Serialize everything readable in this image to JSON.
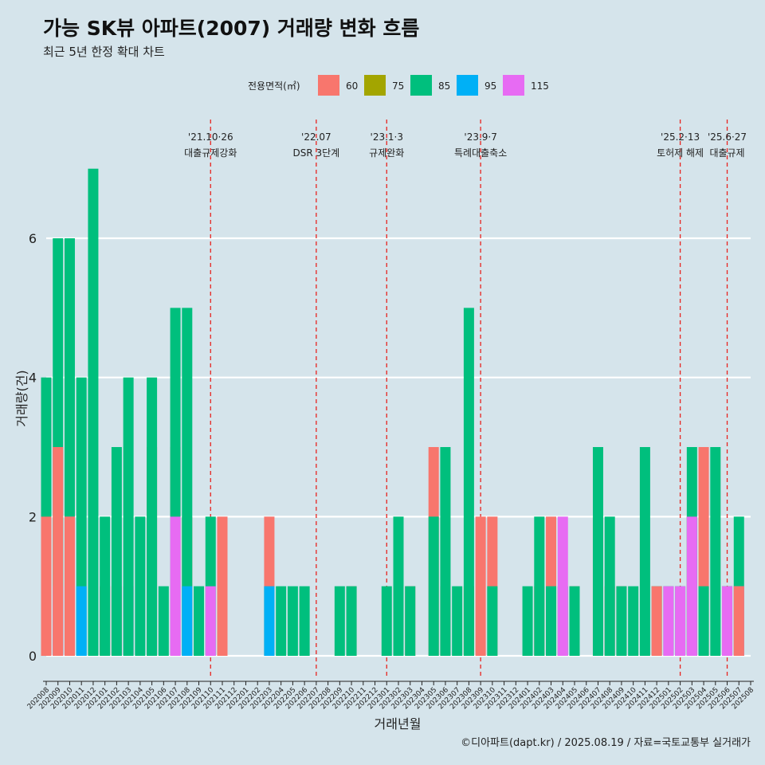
{
  "chart_data": {
    "type": "bar",
    "title": "가능 SK뷰 아파트(2007) 거래량 변화 흐름",
    "subtitle": "최근 5년 한정 확대 차트",
    "xlabel": "거래년월",
    "ylabel": "거래량(건)",
    "ylim": [
      -0.3,
      7.0
    ],
    "yticks": [
      0,
      2,
      4,
      6
    ],
    "grid": true,
    "legend": {
      "title": "전용면적(㎡)",
      "position": "top",
      "entries": [
        {
          "name": "60",
          "color": "#f8766d"
        },
        {
          "name": "75",
          "color": "#a3a500"
        },
        {
          "name": "85",
          "color": "#00bf7d"
        },
        {
          "name": "95",
          "color": "#00b0f6"
        },
        {
          "name": "115",
          "color": "#e76bf3"
        }
      ]
    },
    "categories": [
      "202008",
      "202009",
      "202010",
      "202011",
      "202012",
      "202101",
      "202102",
      "202103",
      "202104",
      "202105",
      "202106",
      "202107",
      "202108",
      "202109",
      "202110",
      "202111",
      "202112",
      "202201",
      "202202",
      "202203",
      "202204",
      "202205",
      "202206",
      "202207",
      "202208",
      "202209",
      "202210",
      "202211",
      "202212",
      "202301",
      "202302",
      "202303",
      "202304",
      "202305",
      "202306",
      "202307",
      "202308",
      "202309",
      "202310",
      "202311",
      "202312",
      "202401",
      "202402",
      "202403",
      "202404",
      "202405",
      "202406",
      "202407",
      "202408",
      "202409",
      "202410",
      "202411",
      "202412",
      "202501",
      "202502",
      "202503",
      "202504",
      "202505",
      "202506",
      "202507",
      "202508"
    ],
    "bars": [
      {
        "month": "202008",
        "area": "85",
        "value": 4
      },
      {
        "month": "202008",
        "area": "115",
        "value": 1
      },
      {
        "month": "202008",
        "area": "60",
        "value": 2
      },
      {
        "month": "202009",
        "area": "85",
        "value": 6
      },
      {
        "month": "202009",
        "area": "115",
        "value": 1
      },
      {
        "month": "202009",
        "area": "60",
        "value": 3
      },
      {
        "month": "202010",
        "area": "85",
        "value": 6
      },
      {
        "month": "202010",
        "area": "115",
        "value": 2
      },
      {
        "month": "202010",
        "area": "60",
        "value": 2
      },
      {
        "month": "202011",
        "area": "85",
        "value": 4
      },
      {
        "month": "202011",
        "area": "95",
        "value": 1
      },
      {
        "month": "202012",
        "area": "85",
        "value": 7
      },
      {
        "month": "202101",
        "area": "60",
        "value": 1
      },
      {
        "month": "202101",
        "area": "85",
        "value": 2
      },
      {
        "month": "202102",
        "area": "60",
        "value": 1
      },
      {
        "month": "202102",
        "area": "85",
        "value": 3
      },
      {
        "month": "202103",
        "area": "115",
        "value": 1
      },
      {
        "month": "202103",
        "area": "85",
        "value": 4
      },
      {
        "month": "202104",
        "area": "85",
        "value": 2
      },
      {
        "month": "202105",
        "area": "60",
        "value": 3
      },
      {
        "month": "202105",
        "area": "85",
        "value": 4
      },
      {
        "month": "202106",
        "area": "85",
        "value": 1
      },
      {
        "month": "202107",
        "area": "60",
        "value": 3
      },
      {
        "month": "202107",
        "area": "85",
        "value": 5
      },
      {
        "month": "202107",
        "area": "115",
        "value": 2
      },
      {
        "month": "202108",
        "area": "60",
        "value": 2
      },
      {
        "month": "202108",
        "area": "85",
        "value": 5
      },
      {
        "month": "202108",
        "area": "95",
        "value": 1
      },
      {
        "month": "202109",
        "area": "85",
        "value": 1
      },
      {
        "month": "202110",
        "area": "85",
        "value": 2
      },
      {
        "month": "202110",
        "area": "115",
        "value": 1
      },
      {
        "month": "202111",
        "area": "60",
        "value": 2
      },
      {
        "month": "202203",
        "area": "85",
        "value": 1
      },
      {
        "month": "202203",
        "area": "60",
        "value": 2
      },
      {
        "month": "202203",
        "area": "95",
        "value": 1
      },
      {
        "month": "202204",
        "area": "85",
        "value": 1
      },
      {
        "month": "202205",
        "area": "85",
        "value": 1
      },
      {
        "month": "202206",
        "area": "85",
        "value": 1
      },
      {
        "month": "202209",
        "area": "85",
        "value": 1
      },
      {
        "month": "202210",
        "area": "60",
        "value": 1
      },
      {
        "month": "202210",
        "area": "85",
        "value": 1
      },
      {
        "month": "202301",
        "area": "85",
        "value": 1
      },
      {
        "month": "202302",
        "area": "85",
        "value": 2
      },
      {
        "month": "202303",
        "area": "60",
        "value": 1
      },
      {
        "month": "202303",
        "area": "85",
        "value": 1
      },
      {
        "month": "202305",
        "area": "60",
        "value": 3
      },
      {
        "month": "202305",
        "area": "85",
        "value": 2
      },
      {
        "month": "202306",
        "area": "60",
        "value": 1
      },
      {
        "month": "202306",
        "area": "85",
        "value": 3
      },
      {
        "month": "202307",
        "area": "85",
        "value": 1
      },
      {
        "month": "202308",
        "area": "75",
        "value": 1
      },
      {
        "month": "202308",
        "area": "85",
        "value": 5
      },
      {
        "month": "202309",
        "area": "60",
        "value": 2
      },
      {
        "month": "202310",
        "area": "60",
        "value": 2
      },
      {
        "month": "202310",
        "area": "85",
        "value": 1
      },
      {
        "month": "202401",
        "area": "85",
        "value": 1
      },
      {
        "month": "202402",
        "area": "60",
        "value": 1
      },
      {
        "month": "202402",
        "area": "85",
        "value": 2
      },
      {
        "month": "202403",
        "area": "60",
        "value": 2
      },
      {
        "month": "202403",
        "area": "85",
        "value": 1
      },
      {
        "month": "202404",
        "area": "85",
        "value": 1
      },
      {
        "month": "202404",
        "area": "115",
        "value": 2
      },
      {
        "month": "202405",
        "area": "60",
        "value": 1
      },
      {
        "month": "202405",
        "area": "85",
        "value": 1
      },
      {
        "month": "202407",
        "area": "60",
        "value": 2
      },
      {
        "month": "202407",
        "area": "85",
        "value": 3
      },
      {
        "month": "202408",
        "area": "60",
        "value": 1
      },
      {
        "month": "202408",
        "area": "85",
        "value": 2
      },
      {
        "month": "202409",
        "area": "60",
        "value": 1
      },
      {
        "month": "202409",
        "area": "85",
        "value": 1
      },
      {
        "month": "202410",
        "area": "85",
        "value": 1
      },
      {
        "month": "202411",
        "area": "85",
        "value": 3
      },
      {
        "month": "202412",
        "area": "85",
        "value": 1
      },
      {
        "month": "202412",
        "area": "60",
        "value": 1
      },
      {
        "month": "202501",
        "area": "85",
        "value": 1
      },
      {
        "month": "202501",
        "area": "115",
        "value": 1
      },
      {
        "month": "202502",
        "area": "85",
        "value": 1
      },
      {
        "month": "202502",
        "area": "115",
        "value": 1
      },
      {
        "month": "202503",
        "area": "60",
        "value": 2
      },
      {
        "month": "202503",
        "area": "85",
        "value": 3
      },
      {
        "month": "202503",
        "area": "115",
        "value": 2
      },
      {
        "month": "202504",
        "area": "60",
        "value": 3
      },
      {
        "month": "202504",
        "area": "85",
        "value": 1
      },
      {
        "month": "202505",
        "area": "85",
        "value": 3
      },
      {
        "month": "202506",
        "area": "60",
        "value": 1
      },
      {
        "month": "202506",
        "area": "85",
        "value": 1
      },
      {
        "month": "202506",
        "area": "115",
        "value": 1
      },
      {
        "month": "202507",
        "area": "85",
        "value": 2
      },
      {
        "month": "202507",
        "area": "115",
        "value": 1
      },
      {
        "month": "202507",
        "area": "60",
        "value": 1
      }
    ],
    "annotations": [
      {
        "month": "202110",
        "date": "'21.10·26",
        "label": "대출규제강화"
      },
      {
        "month": "202207",
        "date": "'22.07",
        "label": "DSR 3단계"
      },
      {
        "month": "202301",
        "date": "'23.1·3",
        "label": "규제완화"
      },
      {
        "month": "202309",
        "date": "'23.9·7",
        "label": "특례대출축소"
      },
      {
        "month": "202502",
        "date": "'25.2·13",
        "label": "토허제 해제"
      },
      {
        "month": "202506",
        "date": "'25.6·27",
        "label": "대출규제"
      }
    ]
  },
  "caption": "©디아파트(dapt.kr) / 2025.08.19 / 자료=국토교통부 실거래가"
}
